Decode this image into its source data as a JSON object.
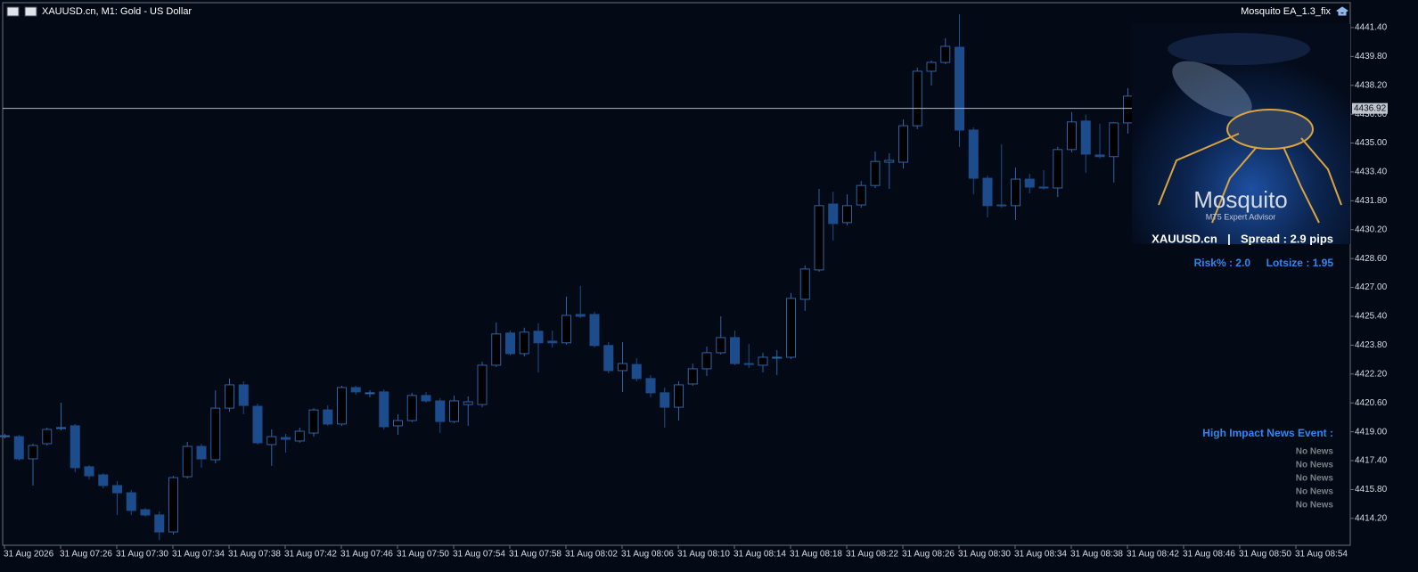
{
  "header": {
    "symbol": "XAUUSD.cn, M1:  Gold - US Dollar",
    "expert": "Mosquito EA_1.3_fix"
  },
  "panel": {
    "logo_title": "Mosquito",
    "logo_subtitle": "MT5 Expert Advisor",
    "symbol": "XAUUSD.cn",
    "separator": "|",
    "spread": "Spread : 2.9 pips",
    "risk": "Risk% : 2.0",
    "lotsize": "Lotsize : 1.95",
    "news_title": "High Impact News Event :",
    "news": [
      "No News",
      "No News",
      "No News",
      "No News",
      "No News"
    ]
  },
  "chart_data": {
    "type": "candlestick",
    "categories": [
      "31 Aug 2026",
      null,
      null,
      null,
      "31 Aug 07:26",
      null,
      null,
      null,
      "31 Aug 07:30",
      null,
      null,
      null,
      "31 Aug 07:34",
      null,
      null,
      null,
      "31 Aug 07:38",
      null,
      null,
      null,
      "31 Aug 07:42",
      null,
      null,
      null,
      "31 Aug 07:46",
      null,
      null,
      null,
      "31 Aug 07:50",
      null,
      null,
      null,
      "31 Aug 07:54",
      null,
      null,
      null,
      "31 Aug 07:58",
      null,
      null,
      null,
      "31 Aug 08:02",
      null,
      null,
      null,
      "31 Aug 08:06",
      null,
      null,
      null,
      "31 Aug 08:10",
      null,
      null,
      null,
      "31 Aug 08:14",
      null,
      null,
      null,
      "31 Aug 08:18",
      null,
      null,
      null,
      "31 Aug 08:22",
      null,
      null,
      null,
      "31 Aug 08:26",
      null,
      null,
      null,
      "31 Aug 08:30",
      null,
      null,
      null,
      "31 Aug 08:34",
      null,
      null,
      null,
      "31 Aug 08:38",
      null,
      null,
      null,
      "31 Aug 08:42",
      null,
      null,
      null,
      "31 Aug 08:46",
      null,
      null,
      null,
      "31 Aug 08:50",
      null,
      null,
      null,
      "31 Aug 08:54",
      null,
      null,
      null
    ],
    "open": [
      4418.78,
      4418.73,
      4417.5,
      4418.34,
      4419.18,
      4419.33,
      4417.06,
      4416.61,
      4416.02,
      4415.62,
      4414.68,
      4414.39,
      4413.45,
      4416.51,
      4418.19,
      4417.45,
      4420.31,
      4421.6,
      4420.41,
      4418.29,
      4418.68,
      4418.49,
      4418.93,
      4420.21,
      4419.43,
      4421.45,
      4421.16,
      4421.21,
      4419.33,
      4419.62,
      4421.01,
      4420.71,
      4419.57,
      4420.51,
      4420.51,
      4422.69,
      4424.47,
      4423.33,
      4424.57,
      4424.02,
      4423.93,
      4425.5,
      4425.5,
      4423.78,
      4422.39,
      4422.73,
      4421.95,
      4421.16,
      4420.36,
      4421.65,
      4422.49,
      4423.38,
      4424.22,
      4422.78,
      4422.69,
      4423.13,
      4423.13,
      4426.34,
      4427.97,
      4431.62,
      4430.59,
      4431.57,
      4432.65,
      4433.94,
      4433.94,
      4435.96,
      4438.98,
      4439.47,
      4440.31,
      4435.72,
      4433.05,
      4431.57,
      4431.53,
      4433.0,
      4432.56,
      4432.51,
      4434.64,
      4436.22,
      4434.34,
      4434.25,
      4436.12,
      null,
      null,
      null,
      null,
      null,
      null,
      null,
      null,
      null,
      null,
      null,
      null,
      null,
      null,
      null
    ],
    "high": [
      4418.88,
      4418.83,
      4418.34,
      4419.23,
      4420.61,
      4419.43,
      4417.15,
      4416.71,
      4416.26,
      4415.77,
      4414.78,
      4414.59,
      4416.56,
      4418.44,
      4418.34,
      4421.3,
      4421.95,
      4421.8,
      4420.56,
      4419.13,
      4418.88,
      4419.23,
      4420.31,
      4420.46,
      4421.55,
      4421.55,
      4421.3,
      4421.35,
      4419.97,
      4421.16,
      4421.21,
      4420.86,
      4421.01,
      4420.96,
      4422.88,
      4425.06,
      4424.61,
      4424.77,
      4425.01,
      4424.61,
      4426.49,
      4427.08,
      4425.65,
      4423.97,
      4423.97,
      4423.08,
      4422.14,
      4421.45,
      4421.8,
      4422.78,
      4423.72,
      4425.4,
      4424.61,
      4423.87,
      4423.38,
      4423.52,
      4426.69,
      4428.22,
      4432.46,
      4432.31,
      4432.16,
      4432.9,
      4434.53,
      4434.43,
      4436.31,
      4439.18,
      4439.57,
      4440.81,
      4442.14,
      4435.87,
      4433.2,
      4434.94,
      4433.64,
      4433.3,
      4433.5,
      4434.79,
      4436.72,
      4436.57,
      4436.07,
      4436.17,
      4438.04,
      null,
      null,
      null,
      null,
      null,
      null,
      null,
      null,
      null,
      null,
      null,
      null,
      null,
      null,
      null
    ],
    "low": [
      4418.63,
      4417.4,
      4416.02,
      4418.24,
      4419.08,
      4416.76,
      4416.36,
      4415.87,
      4414.39,
      4414.39,
      4414.29,
      4413.0,
      4413.3,
      4416.41,
      4417.01,
      4417.25,
      4420.11,
      4419.97,
      4418.29,
      4417.11,
      4417.84,
      4418.39,
      4418.73,
      4419.33,
      4419.33,
      4421.06,
      4420.91,
      4419.13,
      4418.83,
      4419.53,
      4420.61,
      4418.93,
      4419.48,
      4419.33,
      4420.36,
      4422.59,
      4423.23,
      4423.18,
      4422.29,
      4423.67,
      4423.83,
      4425.3,
      4423.67,
      4422.24,
      4421.21,
      4421.8,
      4420.91,
      4419.23,
      4419.62,
      4421.55,
      4422.09,
      4423.28,
      4422.69,
      4422.54,
      4422.29,
      4422.14,
      4423.03,
      4425.7,
      4427.87,
      4429.59,
      4430.44,
      4431.42,
      4432.51,
      4432.46,
      4433.59,
      4435.77,
      4438.19,
      4439.37,
      4434.79,
      4432.16,
      4430.88,
      4431.42,
      4430.73,
      4432.21,
      4432.41,
      4432.01,
      4434.49,
      4433.35,
      4434.15,
      4432.81,
      4435.52,
      null,
      null,
      null,
      null,
      null,
      null,
      null,
      null,
      null,
      null,
      null,
      null,
      null,
      null,
      null
    ],
    "close": [
      4418.78,
      4417.5,
      4418.24,
      4419.13,
      4419.23,
      4417.01,
      4416.56,
      4416.02,
      4415.62,
      4414.64,
      4414.39,
      4413.45,
      4416.46,
      4418.19,
      4417.5,
      4420.31,
      4421.6,
      4420.46,
      4418.39,
      4418.73,
      4418.58,
      4419.03,
      4420.21,
      4419.43,
      4421.45,
      4421.21,
      4421.16,
      4419.28,
      4419.62,
      4421.01,
      4420.71,
      4419.57,
      4420.71,
      4420.66,
      4422.69,
      4424.42,
      4423.33,
      4424.52,
      4423.93,
      4423.93,
      4425.45,
      4425.4,
      4423.78,
      4422.39,
      4422.78,
      4421.95,
      4421.16,
      4420.36,
      4421.6,
      4422.49,
      4423.38,
      4424.22,
      4422.78,
      4422.73,
      4423.13,
      4423.13,
      4426.39,
      4428.02,
      4431.53,
      4430.54,
      4431.53,
      4432.65,
      4433.98,
      4434.04,
      4435.96,
      4438.98,
      4439.47,
      4440.36,
      4435.72,
      4433.05,
      4431.53,
      4431.53,
      4433.0,
      4432.56,
      4432.51,
      4434.64,
      4436.17,
      4434.39,
      4434.25,
      4436.12,
      4437.6,
      null,
      null,
      null,
      null,
      null,
      null,
      null,
      null,
      null,
      null,
      null,
      null,
      null,
      null,
      null
    ],
    "up_color": "#2f63a8",
    "down_color": "#1d4c8c",
    "price_line": 4436.92,
    "ylim": [
      4412.71,
      4442.78
    ],
    "yticks": [
      {
        "value": 4441.4,
        "label": "4441.40"
      },
      {
        "value": 4439.8,
        "label": "4439.80"
      },
      {
        "value": 4438.2,
        "label": "4438.20"
      },
      {
        "value": 4436.6,
        "label": "4436.60"
      },
      {
        "value": 4435,
        "label": "4435.00"
      },
      {
        "value": 4433.4,
        "label": "4433.40"
      },
      {
        "value": 4431.8,
        "label": "4431.80"
      },
      {
        "value": 4430.2,
        "label": "4430.20"
      },
      {
        "value": 4428.6,
        "label": "4428.60"
      },
      {
        "value": 4427,
        "label": "4427.00"
      },
      {
        "value": 4425.4,
        "label": "4425.40"
      },
      {
        "value": 4423.8,
        "label": "4423.80"
      },
      {
        "value": 4422.2,
        "label": "4422.20"
      },
      {
        "value": 4420.6,
        "label": "4420.60"
      },
      {
        "value": 4419,
        "label": "4419.00"
      },
      {
        "value": 4417.4,
        "label": "4417.40"
      },
      {
        "value": 4415.8,
        "label": "4415.80"
      },
      {
        "value": 4414.2,
        "label": "4414.20"
      }
    ],
    "grid": false
  }
}
